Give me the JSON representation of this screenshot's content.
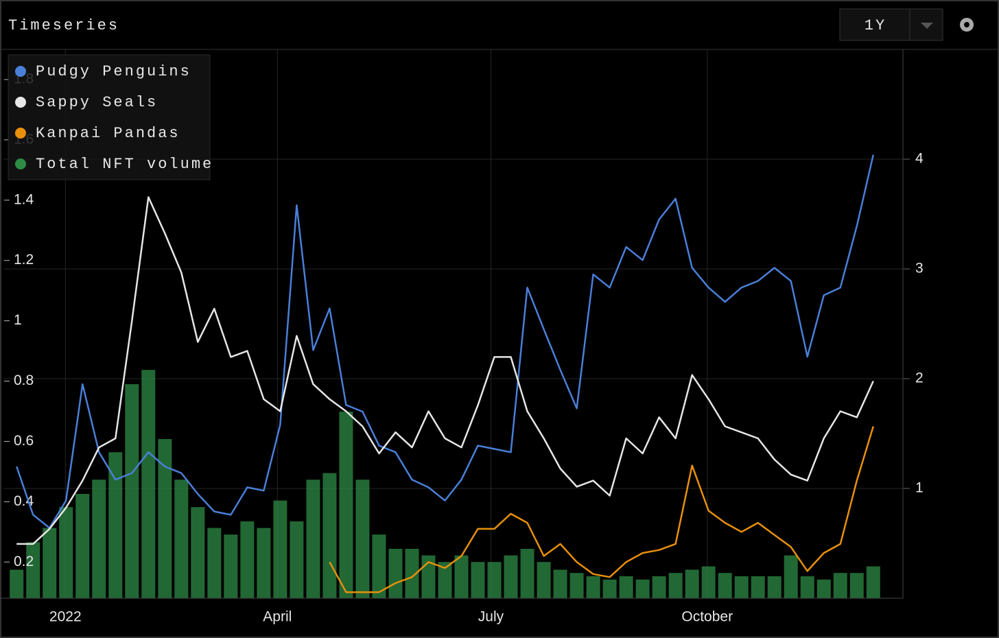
{
  "header": {
    "title": "Timeseries",
    "range": "1Y"
  },
  "chart_data": {
    "type": "line",
    "xlim": [
      -0.8,
      53.8
    ],
    "xticks": [
      {
        "value": 2.96,
        "label": "2022"
      },
      {
        "value": 15.83,
        "label": "April"
      },
      {
        "value": 28.79,
        "label": "July"
      },
      {
        "value": 41.92,
        "label": "October"
      }
    ],
    "ylim": [
      0.08,
      1.9
    ],
    "yticks": [
      0.2,
      0.4,
      0.6,
      0.8,
      1,
      1.2,
      1.4,
      1.6,
      1.8
    ],
    "y2lim": [
      0,
      5
    ],
    "y2ticks": [
      1,
      2,
      3,
      4
    ],
    "grid": true,
    "legend": "top-left",
    "series": [
      {
        "name": "Pudgy Penguins",
        "color": "#4a7fd8",
        "axis": "y2",
        "type": "line",
        "values": [
          1.2,
          0.76,
          0.64,
          0.89,
          1.95,
          1.33,
          1.08,
          1.14,
          1.33,
          1.2,
          1.14,
          0.95,
          0.79,
          0.76,
          1.01,
          0.98,
          1.58,
          3.58,
          2.26,
          2.64,
          1.76,
          1.7,
          1.39,
          1.33,
          1.08,
          1.01,
          0.89,
          1.08,
          1.39,
          1.36,
          1.33,
          2.83,
          2.45,
          2.08,
          1.73,
          2.95,
          2.83,
          3.2,
          3.08,
          3.45,
          3.64,
          3.01,
          2.83,
          2.7,
          2.83,
          2.89,
          3.01,
          2.89,
          2.2,
          2.76,
          2.83,
          3.39,
          4.04
        ]
      },
      {
        "name": "Sappy Seals",
        "color": "#e6e6e6",
        "type": "line",
        "values": [
          0.26,
          0.26,
          0.31,
          0.38,
          0.47,
          0.58,
          0.61,
          1.0,
          1.41,
          1.29,
          1.16,
          0.93,
          1.04,
          0.88,
          0.9,
          0.74,
          0.7,
          0.95,
          0.79,
          0.74,
          0.7,
          0.65,
          0.56,
          0.63,
          0.58,
          0.7,
          0.61,
          0.58,
          0.72,
          0.88,
          0.88,
          0.7,
          0.61,
          0.51,
          0.45,
          0.47,
          0.42,
          0.61,
          0.56,
          0.68,
          0.61,
          0.82,
          0.74,
          0.65,
          0.63,
          0.61,
          0.54,
          0.49,
          0.47,
          0.61,
          0.7,
          0.68,
          0.8
        ]
      },
      {
        "name": "Kanpai Pandas",
        "color": "#e8900c",
        "type": "line",
        "values": [
          null,
          null,
          null,
          null,
          null,
          null,
          null,
          null,
          null,
          null,
          null,
          null,
          null,
          null,
          null,
          null,
          null,
          null,
          null,
          0.2,
          0.1,
          0.1,
          0.1,
          0.13,
          0.15,
          0.2,
          0.18,
          0.22,
          0.31,
          0.31,
          0.36,
          0.33,
          0.22,
          0.26,
          0.2,
          0.16,
          0.15,
          0.2,
          0.23,
          0.24,
          0.26,
          0.52,
          0.37,
          0.33,
          0.3,
          0.33,
          0.29,
          0.25,
          0.17,
          0.23,
          0.26,
          0.47,
          0.65
        ]
      },
      {
        "name": "Total NFT volume",
        "color": "#2e8b45",
        "axis": "y2",
        "type": "bar",
        "values": [
          0.26,
          0.51,
          0.64,
          0.83,
          0.95,
          1.08,
          1.33,
          1.95,
          2.08,
          1.45,
          1.08,
          0.83,
          0.64,
          0.58,
          0.7,
          0.64,
          0.89,
          0.7,
          1.08,
          1.14,
          1.7,
          1.08,
          0.58,
          0.45,
          0.45,
          0.39,
          0.33,
          0.39,
          0.33,
          0.33,
          0.39,
          0.45,
          0.33,
          0.26,
          0.23,
          0.2,
          0.17,
          0.2,
          0.17,
          0.2,
          0.23,
          0.26,
          0.29,
          0.23,
          0.2,
          0.2,
          0.2,
          0.39,
          0.2,
          0.17,
          0.23,
          0.23,
          0.29
        ]
      }
    ]
  }
}
